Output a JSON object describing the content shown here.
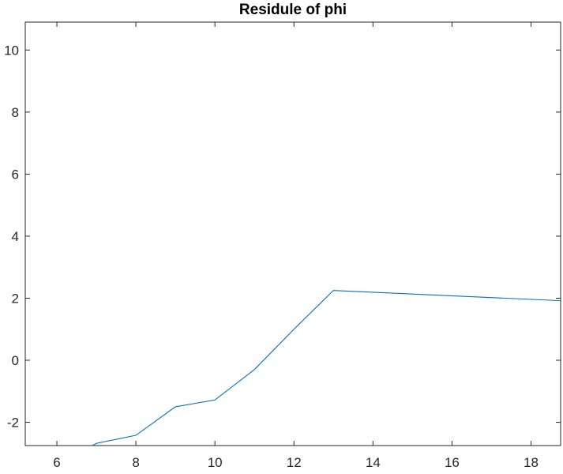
{
  "chart_data": {
    "type": "line",
    "title": "Residule of phi",
    "xlabel": "",
    "ylabel": "",
    "xlim": [
      5.2,
      18.75
    ],
    "ylim": [
      -2.75,
      10.9
    ],
    "xticks": [
      6,
      8,
      10,
      12,
      14,
      16,
      18
    ],
    "yticks": [
      -2,
      0,
      2,
      4,
      6,
      8,
      10
    ],
    "xtick_labels": [
      "6",
      "8",
      "10",
      "12",
      "14",
      "16",
      "18"
    ],
    "ytick_labels": [
      "-2",
      "0",
      "2",
      "4",
      "6",
      "8",
      "10"
    ],
    "grid": false,
    "series": [
      {
        "color": "#0072BD",
        "x": [
          6.9,
          7,
          8,
          9,
          10,
          11,
          12,
          13,
          18.75
        ],
        "y": [
          -2.75,
          -2.68,
          -2.42,
          -1.5,
          -1.28,
          -0.3,
          1.0,
          2.25,
          1.92
        ]
      }
    ]
  }
}
